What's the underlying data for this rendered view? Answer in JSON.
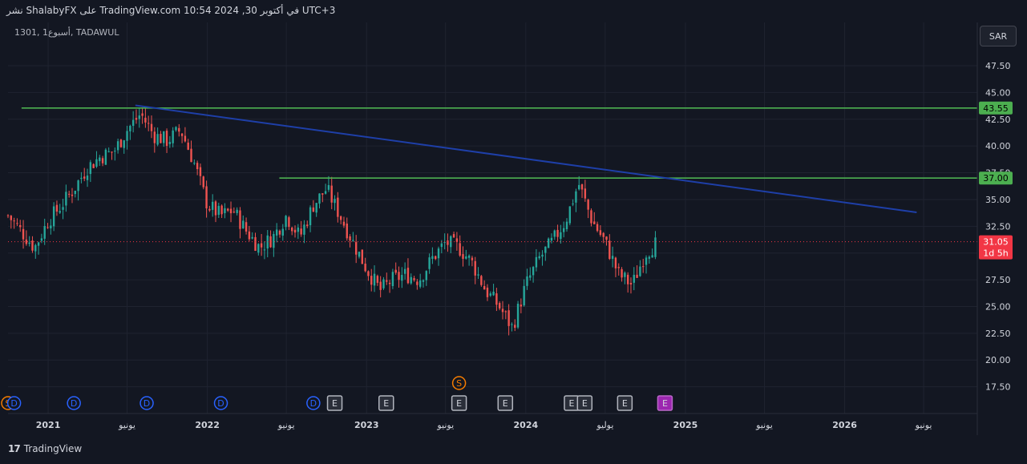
{
  "header": {
    "publish_line": "نشر ShalabyFX على TradingView.com 10:54 2024 ,30 في أكتوبر UTC+3"
  },
  "symbol_info": "1301, 1أسبوع, TADAWUL",
  "currency_button": "SAR",
  "footer": {
    "brand": "TradingView",
    "brand_mark": "17"
  },
  "colors": {
    "background": "#131722",
    "up": "#26a69a",
    "down": "#ef5350",
    "green_level": "#4caf50",
    "trendline": "#1e3fa8",
    "current_price": "#f23645"
  },
  "chart_data": {
    "type": "candlestick",
    "title": "",
    "xlabel": "",
    "ylabel": "",
    "ylim": [
      15.0,
      49.0
    ],
    "y_ticks": [
      "47.50",
      "45.00",
      "42.50",
      "40.00",
      "37.50",
      "35.00",
      "32.50",
      "30.00",
      "27.50",
      "25.00",
      "22.50",
      "20.00",
      "17.50"
    ],
    "x_ticks": [
      {
        "date": "2021-01-01",
        "label": "2021"
      },
      {
        "date": "2021-07-01",
        "label": "يونيو"
      },
      {
        "date": "2022-01-01",
        "label": "2022"
      },
      {
        "date": "2022-07-01",
        "label": "يونيو"
      },
      {
        "date": "2023-01-01",
        "label": "2023"
      },
      {
        "date": "2023-07-01",
        "label": "يونيو"
      },
      {
        "date": "2024-01-01",
        "label": "2024"
      },
      {
        "date": "2024-07-01",
        "label": "يوليو"
      },
      {
        "date": "2025-01-01",
        "label": "2025"
      },
      {
        "date": "2025-07-01",
        "label": "يونيو"
      },
      {
        "date": "2026-01-01",
        "label": "2026"
      },
      {
        "date": "2026-07-01",
        "label": "يونيو"
      }
    ],
    "xlim": [
      "2020-10-01",
      "2026-11-01"
    ],
    "close_path": [
      [
        "2020-10-01",
        33.5
      ],
      [
        "2020-11-01",
        32.0
      ],
      [
        "2020-12-01",
        30.5
      ],
      [
        "2021-01-01",
        33.0
      ],
      [
        "2021-02-01",
        34.5
      ],
      [
        "2021-03-01",
        36.0
      ],
      [
        "2021-04-01",
        38.0
      ],
      [
        "2021-05-01",
        39.0
      ],
      [
        "2021-06-01",
        39.5
      ],
      [
        "2021-07-01",
        41.5
      ],
      [
        "2021-08-01",
        43.0
      ],
      [
        "2021-09-01",
        41.0
      ],
      [
        "2021-10-01",
        40.5
      ],
      [
        "2021-11-01",
        41.5
      ],
      [
        "2021-12-01",
        38.5
      ],
      [
        "2022-01-01",
        34.5
      ],
      [
        "2022-02-01",
        33.5
      ],
      [
        "2022-03-01",
        34.0
      ],
      [
        "2022-04-01",
        32.0
      ],
      [
        "2022-05-01",
        30.5
      ],
      [
        "2022-06-01",
        31.5
      ],
      [
        "2022-07-01",
        33.5
      ],
      [
        "2022-08-01",
        31.5
      ],
      [
        "2022-09-01",
        34.5
      ],
      [
        "2022-10-01",
        36.0
      ],
      [
        "2022-11-01",
        33.5
      ],
      [
        "2022-12-01",
        31.0
      ],
      [
        "2023-01-01",
        28.5
      ],
      [
        "2023-02-01",
        26.5
      ],
      [
        "2023-03-01",
        27.5
      ],
      [
        "2023-04-01",
        28.0
      ],
      [
        "2023-05-01",
        27.5
      ],
      [
        "2023-06-01",
        29.5
      ],
      [
        "2023-07-01",
        31.0
      ],
      [
        "2023-08-01",
        30.5
      ],
      [
        "2023-09-01",
        29.0
      ],
      [
        "2023-10-01",
        26.5
      ],
      [
        "2023-11-01",
        25.0
      ],
      [
        "2023-12-01",
        23.0
      ],
      [
        "2024-01-01",
        27.0
      ],
      [
        "2024-02-01",
        29.5
      ],
      [
        "2024-03-01",
        31.0
      ],
      [
        "2024-04-01",
        33.0
      ],
      [
        "2024-05-01",
        36.5
      ],
      [
        "2024-06-01",
        33.0
      ],
      [
        "2024-07-01",
        31.0
      ],
      [
        "2024-08-01",
        28.0
      ],
      [
        "2024-09-01",
        27.0
      ],
      [
        "2024-10-01",
        30.0
      ],
      [
        "2024-10-30",
        31.05
      ]
    ],
    "current_price": {
      "value": "31.05",
      "countdown": "1d 5h"
    },
    "horizontal_levels": [
      {
        "value": 43.55,
        "label": "43.55",
        "from": "2020-11-01"
      },
      {
        "value": 37.0,
        "label": "37.00",
        "from": "2022-06-15"
      }
    ],
    "trendline": {
      "from": {
        "date": "2021-07-20",
        "value": 43.8
      },
      "to": {
        "date": "2026-06-15",
        "value": 33.8
      }
    },
    "markers": [
      {
        "date": "2020-10-01",
        "letter": "S",
        "kind": "split",
        "row": "bottom"
      },
      {
        "date": "2020-10-15",
        "letter": "D",
        "kind": "dividend",
        "row": "bottom"
      },
      {
        "date": "2021-03-01",
        "letter": "D",
        "kind": "dividend",
        "row": "bottom"
      },
      {
        "date": "2021-08-15",
        "letter": "D",
        "kind": "dividend",
        "row": "bottom"
      },
      {
        "date": "2022-02-01",
        "letter": "D",
        "kind": "dividend",
        "row": "bottom"
      },
      {
        "date": "2022-09-01",
        "letter": "D",
        "kind": "dividend",
        "row": "bottom"
      },
      {
        "date": "2022-10-20",
        "letter": "E",
        "kind": "earnings",
        "row": "bottom"
      },
      {
        "date": "2023-02-15",
        "letter": "E",
        "kind": "earnings",
        "row": "bottom"
      },
      {
        "date": "2023-08-01",
        "letter": "E",
        "kind": "earnings",
        "row": "bottom"
      },
      {
        "date": "2023-08-01",
        "letter": "S",
        "kind": "split",
        "row": "upper"
      },
      {
        "date": "2023-11-15",
        "letter": "E",
        "kind": "earnings",
        "row": "bottom"
      },
      {
        "date": "2024-04-15",
        "letter": "E",
        "kind": "earnings",
        "row": "bottom"
      },
      {
        "date": "2024-05-15",
        "letter": "E",
        "kind": "earnings",
        "row": "bottom"
      },
      {
        "date": "2024-08-15",
        "letter": "E",
        "kind": "earnings",
        "row": "bottom"
      },
      {
        "date": "2024-11-15",
        "letter": "E",
        "kind": "earnings-upcoming",
        "row": "bottom"
      }
    ],
    "grid": true,
    "scale_side": "right"
  }
}
